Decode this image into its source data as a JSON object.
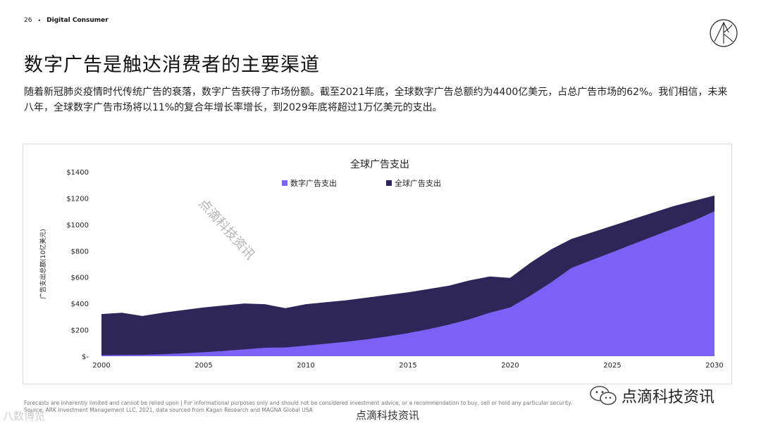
{
  "header": {
    "page_number": "26",
    "separator": "•",
    "section": "Digital Consumer"
  },
  "title": "数字广告是触达消费者的主要渠道",
  "paragraph": "随着新冠肺炎疫情时代传统广告的衰落，数字广告获得了市场份额。截至2021年底，全球数字广告总额约为4400亿美元，占总广告市场的62%。我们相信，未来八年，全球数字广告市场将以11%的复合年增长率增长，到2029年底将超过1万亿美元的支出。",
  "watermark": "点滴科技资讯",
  "footnote": {
    "line1": "Forecasts are inherently limited and cannot be relied upon | For informational purposes only and should not be considered investment advice, or a recommendation to buy, sell or hold any particular security.",
    "line2": "Source: ARK Investment Management LLC, 2021, data sourced from Kagan Research and MAGNA Global USA"
  },
  "badges": {
    "left": "八数博览",
    "center": "点滴科技资讯",
    "right": "点滴科技资讯"
  },
  "chart_data": {
    "type": "area",
    "title": "全球广告支出",
    "ylabel": "广告支出总额(10亿美元)",
    "xlabel": "",
    "x_ticks": [
      "2000",
      "2005",
      "2010",
      "2015",
      "2020",
      "2025",
      "2030"
    ],
    "y_ticks": [
      "$-",
      "$200",
      "$400",
      "$600",
      "$800",
      "$1000",
      "$1200",
      "$1400"
    ],
    "ylim": [
      0,
      1400
    ],
    "xlim": [
      2000,
      2030
    ],
    "legend_position": "top",
    "x": [
      2000,
      2001,
      2002,
      2003,
      2004,
      2005,
      2006,
      2007,
      2008,
      2009,
      2010,
      2011,
      2012,
      2013,
      2014,
      2015,
      2016,
      2017,
      2018,
      2019,
      2020,
      2021,
      2022,
      2023,
      2024,
      2025,
      2026,
      2027,
      2028,
      2029,
      2030
    ],
    "series": [
      {
        "name": "数字广告支出",
        "color": "#7b61f5",
        "values": [
          8,
          9,
          10,
          15,
          22,
          30,
          40,
          52,
          64,
          66,
          80,
          95,
          110,
          128,
          150,
          175,
          205,
          240,
          280,
          330,
          370,
          460,
          560,
          670,
          730,
          790,
          850,
          910,
          970,
          1030,
          1100
        ]
      },
      {
        "name": "全球广告支出",
        "color": "#2e2659",
        "values": [
          320,
          330,
          305,
          330,
          350,
          370,
          385,
          400,
          395,
          365,
          395,
          410,
          425,
          445,
          465,
          485,
          510,
          535,
          575,
          605,
          595,
          710,
          810,
          890,
          940,
          990,
          1040,
          1090,
          1140,
          1180,
          1220
        ]
      }
    ]
  }
}
